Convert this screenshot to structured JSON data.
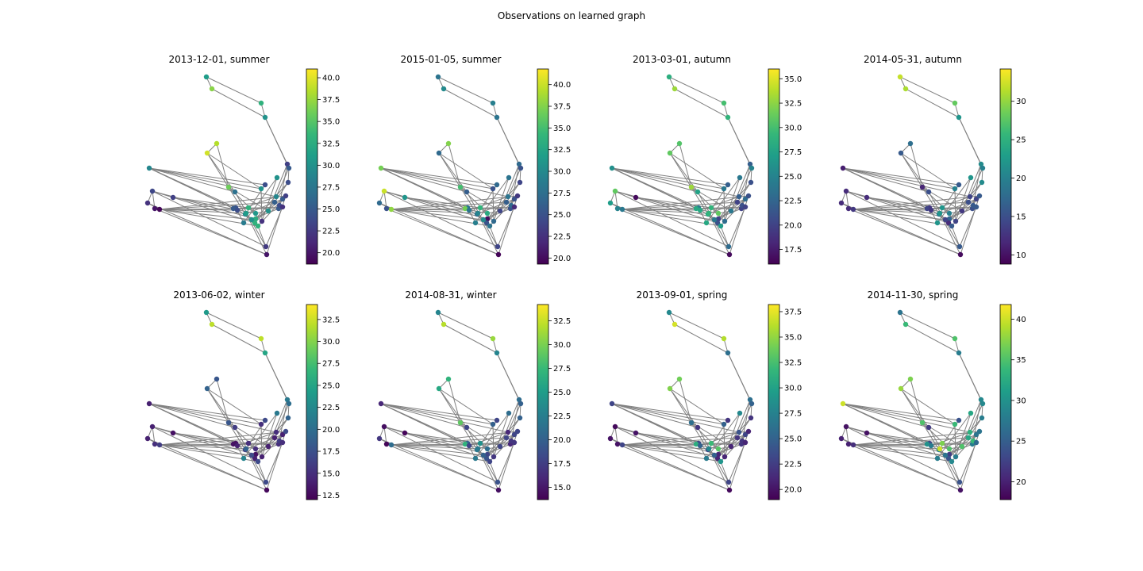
{
  "figure": {
    "suptitle": "Observations on learned graph"
  },
  "colors": {
    "edge": "#808080",
    "viridis": [
      "#440154",
      "#482878",
      "#3e4989",
      "#31688e",
      "#26828e",
      "#1f9e89",
      "#35b779",
      "#6ece58",
      "#b5de2b",
      "#fde725"
    ]
  },
  "chart_data": [
    {
      "type": "scatter",
      "title": "2013-12-01, summer",
      "clim": [
        18.7,
        41.0
      ],
      "ticks": [
        "20.0",
        "22.5",
        "25.0",
        "27.5",
        "30.0",
        "32.5",
        "35.0",
        "37.5",
        "40.0"
      ],
      "values": [
        31.0,
        37.0,
        33.0,
        30.0,
        38.5,
        39.5,
        29.0,
        36.0,
        23.5,
        23.0,
        22.0,
        20.0,
        19.0,
        30.0,
        27.0,
        24.0,
        24.5,
        25.0,
        33.0,
        30.5,
        24.0,
        29.0,
        32.5,
        33.0,
        31.0,
        30.0,
        33.0,
        22.0,
        30.0,
        29.0,
        25.0,
        25.5,
        24.0,
        25.0,
        24.0,
        23.0,
        22.0,
        30.0,
        23.0,
        25.0,
        20.0,
        22.5,
        28.0
      ]
    },
    {
      "type": "scatter",
      "title": "2015-01-05, summer",
      "clim": [
        19.3,
        41.8
      ],
      "ticks": [
        "20.0",
        "22.5",
        "25.0",
        "27.5",
        "30.0",
        "32.5",
        "35.0",
        "37.5",
        "40.0"
      ],
      "values": [
        28.0,
        30.0,
        29.0,
        28.0,
        37.5,
        27.0,
        37.0,
        35.0,
        40.0,
        31.0,
        27.0,
        25.0,
        38.0,
        25.0,
        26.0,
        27.0,
        28.0,
        37.0,
        34.0,
        33.0,
        28.0,
        27.0,
        20.0,
        25.0,
        29.5,
        30.0,
        28.0,
        27.0,
        24.0,
        28.0,
        25.0,
        26.0,
        27.0,
        25.0,
        24.0,
        23.0,
        22.0,
        28.0,
        27.0,
        25.0,
        19.5,
        24.0,
        29.0
      ]
    },
    {
      "type": "scatter",
      "title": "2013-03-01, autumn",
      "clim": [
        16.0,
        36.0
      ],
      "ticks": [
        "17.5",
        "20.0",
        "22.5",
        "25.0",
        "27.5",
        "30.0",
        "32.5",
        "35.0"
      ],
      "values": [
        28.5,
        33.0,
        30.0,
        29.0,
        30.5,
        31.0,
        26.0,
        33.0,
        31.0,
        16.5,
        27.0,
        25.0,
        24.0,
        24.0,
        27.5,
        22.0,
        24.0,
        28.0,
        29.0,
        31.0,
        28.0,
        28.0,
        20.0,
        21.0,
        29.0,
        24.0,
        27.0,
        23.0,
        24.0,
        22.0,
        20.0,
        20.0,
        21.0,
        23.0,
        21.0,
        21.0,
        20.0,
        24.0,
        22.0,
        25.0,
        16.5,
        23.0,
        28.0
      ]
    },
    {
      "type": "scatter",
      "title": "2014-05-31, autumn",
      "clim": [
        8.8,
        34.2
      ],
      "ticks": [
        "10",
        "15",
        "20",
        "25",
        "30"
      ],
      "values": [
        32.0,
        31.0,
        28.0,
        22.0,
        18.0,
        16.0,
        11.0,
        11.5,
        12.0,
        12.0,
        12.0,
        12.0,
        13.0,
        20.0,
        15.0,
        16.0,
        13.0,
        14.0,
        22.0,
        20.0,
        13.0,
        19.0,
        17.0,
        12.0,
        22.0,
        14.0,
        16.0,
        14.0,
        13.0,
        14.0,
        15.0,
        15.0,
        16.0,
        14.0,
        21.0,
        16.0,
        16.0,
        22.0,
        21.0,
        20.0,
        9.5,
        16.0,
        22.0
      ]
    },
    {
      "type": "scatter",
      "title": "2013-06-02, winter",
      "clim": [
        12.0,
        34.2
      ],
      "ticks": [
        "12.5",
        "15.0",
        "17.5",
        "20.0",
        "22.5",
        "25.0",
        "27.5",
        "30.0",
        "32.5"
      ],
      "values": [
        24.0,
        32.0,
        32.0,
        25.0,
        18.0,
        19.0,
        14.0,
        18.0,
        14.0,
        13.0,
        14.0,
        15.0,
        16.0,
        15.0,
        16.0,
        17.0,
        13.0,
        13.0,
        15.0,
        15.0,
        14.0,
        16.0,
        13.0,
        14.0,
        19.0,
        17.0,
        17.0,
        14.0,
        14.0,
        15.0,
        15.0,
        14.0,
        16.0,
        14.0,
        19.0,
        17.0,
        15.0,
        21.0,
        21.0,
        20.0,
        12.5,
        17.0,
        22.0
      ]
    },
    {
      "type": "scatter",
      "title": "2014-08-31, winter",
      "clim": [
        13.7,
        34.2
      ],
      "ticks": [
        "15.0",
        "17.5",
        "20.0",
        "22.5",
        "25.0",
        "27.5",
        "30.0",
        "32.5"
      ],
      "values": [
        23.0,
        32.0,
        31.0,
        23.0,
        27.0,
        26.0,
        16.0,
        29.0,
        14.5,
        14.0,
        17.0,
        14.0,
        21.0,
        20.0,
        18.0,
        18.0,
        20.0,
        27.0,
        24.0,
        21.0,
        18.0,
        22.0,
        18.0,
        19.0,
        22.0,
        20.0,
        18.0,
        17.0,
        18.0,
        16.0,
        16.0,
        18.0,
        17.0,
        18.0,
        20.0,
        18.0,
        17.0,
        21.0,
        21.0,
        20.0,
        14.5,
        19.0,
        22.0
      ]
    },
    {
      "type": "scatter",
      "title": "2013-09-01, spring",
      "clim": [
        19.0,
        38.2
      ],
      "ticks": [
        "20.0",
        "22.5",
        "25.0",
        "27.5",
        "30.0",
        "32.5",
        "35.0",
        "37.5"
      ],
      "values": [
        28.0,
        37.0,
        36.0,
        26.0,
        34.0,
        34.5,
        23.0,
        26.0,
        19.5,
        20.0,
        20.0,
        20.0,
        23.0,
        25.0,
        22.0,
        22.0,
        23.0,
        31.0,
        32.0,
        33.0,
        25.0,
        23.0,
        21.0,
        21.0,
        28.0,
        25.0,
        29.0,
        21.0,
        21.0,
        24.0,
        22.0,
        22.0,
        22.0,
        23.0,
        22.0,
        21.0,
        21.0,
        28.0,
        26.0,
        25.0,
        19.5,
        23.0,
        27.0
      ]
    },
    {
      "type": "scatter",
      "title": "2014-11-30, spring",
      "clim": [
        17.8,
        41.8
      ],
      "ticks": [
        "20",
        "25",
        "30",
        "35",
        "40"
      ],
      "values": [
        27.0,
        34.0,
        35.0,
        28.0,
        37.0,
        38.0,
        40.0,
        35.0,
        19.0,
        19.0,
        20.0,
        20.0,
        21.0,
        34.0,
        22.0,
        24.0,
        23.0,
        30.0,
        37.0,
        35.0,
        28.0,
        28.0,
        22.0,
        24.0,
        40.0,
        27.0,
        29.0,
        28.0,
        35.0,
        33.0,
        28.0,
        32.0,
        34.0,
        27.0,
        28.0,
        27.0,
        26.0,
        32.0,
        29.0,
        29.0,
        19.0,
        24.0,
        28.0
      ]
    }
  ]
}
